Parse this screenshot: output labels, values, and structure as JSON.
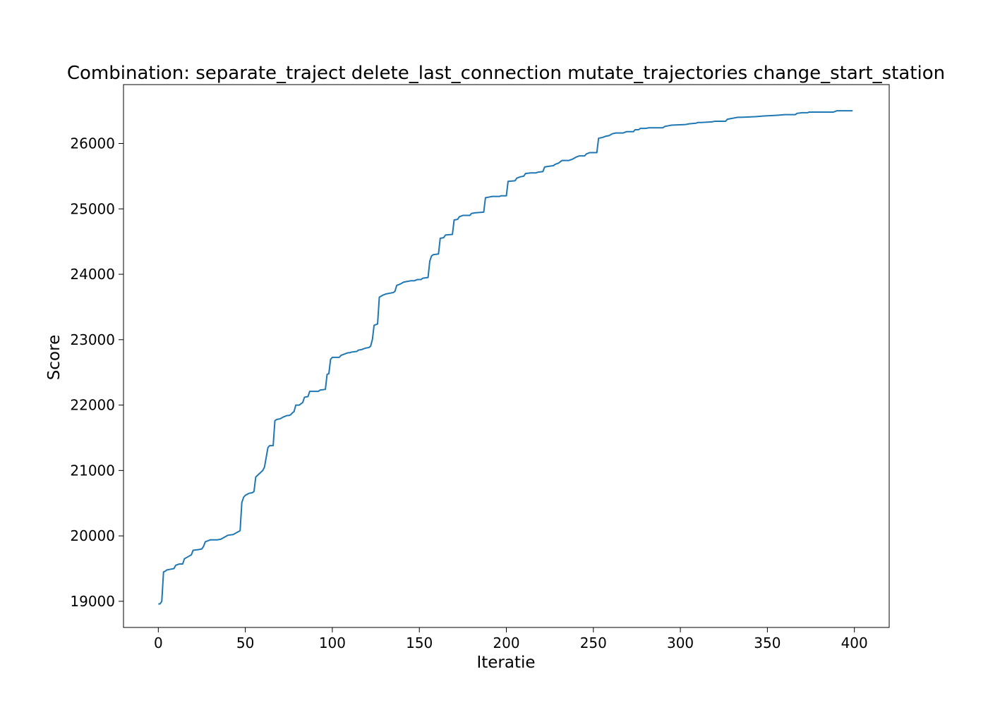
{
  "chart_data": {
    "type": "line",
    "title": "Combination: separate_traject delete_last_connection mutate_trajectories change_start_station",
    "xlabel": "Iteratie",
    "ylabel": "Score",
    "xlim": [
      -20,
      420
    ],
    "ylim": [
      18600,
      26900
    ],
    "xticks": [
      0,
      50,
      100,
      150,
      200,
      250,
      300,
      350,
      400
    ],
    "yticks": [
      19000,
      20000,
      21000,
      22000,
      23000,
      24000,
      25000,
      26000
    ],
    "grid": false,
    "legend": "none",
    "series": [
      {
        "color": "#1f77b4",
        "points": [
          [
            0,
            18960
          ],
          [
            1,
            18960
          ],
          [
            2,
            19000
          ],
          [
            3,
            19450
          ],
          [
            4,
            19460
          ],
          [
            5,
            19480
          ],
          [
            7,
            19490
          ],
          [
            9,
            19500
          ],
          [
            10,
            19550
          ],
          [
            12,
            19570
          ],
          [
            14,
            19570
          ],
          [
            15,
            19650
          ],
          [
            17,
            19680
          ],
          [
            19,
            19710
          ],
          [
            20,
            19780
          ],
          [
            23,
            19790
          ],
          [
            25,
            19800
          ],
          [
            26,
            19840
          ],
          [
            27,
            19910
          ],
          [
            28,
            19920
          ],
          [
            30,
            19940
          ],
          [
            34,
            19940
          ],
          [
            36,
            19950
          ],
          [
            38,
            19980
          ],
          [
            40,
            20010
          ],
          [
            43,
            20020
          ],
          [
            45,
            20050
          ],
          [
            47,
            20080
          ],
          [
            48,
            20510
          ],
          [
            49,
            20590
          ],
          [
            50,
            20620
          ],
          [
            52,
            20650
          ],
          [
            54,
            20660
          ],
          [
            55,
            20680
          ],
          [
            56,
            20900
          ],
          [
            58,
            20950
          ],
          [
            60,
            21000
          ],
          [
            61,
            21050
          ],
          [
            62,
            21200
          ],
          [
            63,
            21350
          ],
          [
            64,
            21380
          ],
          [
            66,
            21380
          ],
          [
            67,
            21760
          ],
          [
            68,
            21780
          ],
          [
            70,
            21790
          ],
          [
            72,
            21820
          ],
          [
            74,
            21840
          ],
          [
            75,
            21840
          ],
          [
            76,
            21850
          ],
          [
            77,
            21880
          ],
          [
            78,
            21900
          ],
          [
            79,
            22000
          ],
          [
            81,
            22000
          ],
          [
            83,
            22040
          ],
          [
            84,
            22120
          ],
          [
            86,
            22130
          ],
          [
            87,
            22210
          ],
          [
            90,
            22210
          ],
          [
            92,
            22210
          ],
          [
            93,
            22230
          ],
          [
            96,
            22240
          ],
          [
            97,
            22470
          ],
          [
            98,
            22480
          ],
          [
            99,
            22700
          ],
          [
            100,
            22730
          ],
          [
            104,
            22730
          ],
          [
            105,
            22760
          ],
          [
            107,
            22780
          ],
          [
            109,
            22800
          ],
          [
            110,
            22800
          ],
          [
            111,
            22810
          ],
          [
            114,
            22820
          ],
          [
            115,
            22840
          ],
          [
            117,
            22850
          ],
          [
            119,
            22870
          ],
          [
            121,
            22880
          ],
          [
            122,
            22900
          ],
          [
            123,
            23000
          ],
          [
            124,
            23220
          ],
          [
            126,
            23240
          ],
          [
            127,
            23650
          ],
          [
            129,
            23680
          ],
          [
            131,
            23700
          ],
          [
            133,
            23710
          ],
          [
            135,
            23720
          ],
          [
            136,
            23740
          ],
          [
            137,
            23830
          ],
          [
            139,
            23850
          ],
          [
            141,
            23880
          ],
          [
            143,
            23890
          ],
          [
            145,
            23900
          ],
          [
            147,
            23900
          ],
          [
            149,
            23920
          ],
          [
            151,
            23920
          ],
          [
            152,
            23940
          ],
          [
            155,
            23950
          ],
          [
            156,
            24200
          ],
          [
            157,
            24280
          ],
          [
            158,
            24300
          ],
          [
            161,
            24310
          ],
          [
            162,
            24550
          ],
          [
            164,
            24560
          ],
          [
            165,
            24600
          ],
          [
            169,
            24610
          ],
          [
            170,
            24830
          ],
          [
            172,
            24840
          ],
          [
            173,
            24880
          ],
          [
            175,
            24900
          ],
          [
            179,
            24900
          ],
          [
            180,
            24930
          ],
          [
            182,
            24940
          ],
          [
            187,
            24950
          ],
          [
            188,
            25170
          ],
          [
            190,
            25180
          ],
          [
            192,
            25190
          ],
          [
            196,
            25190
          ],
          [
            197,
            25200
          ],
          [
            200,
            25200
          ],
          [
            201,
            25420
          ],
          [
            205,
            25430
          ],
          [
            206,
            25470
          ],
          [
            208,
            25490
          ],
          [
            210,
            25500
          ],
          [
            211,
            25540
          ],
          [
            214,
            25550
          ],
          [
            217,
            25550
          ],
          [
            218,
            25560
          ],
          [
            221,
            25570
          ],
          [
            222,
            25640
          ],
          [
            224,
            25650
          ],
          [
            227,
            25660
          ],
          [
            228,
            25680
          ],
          [
            230,
            25700
          ],
          [
            232,
            25740
          ],
          [
            236,
            25740
          ],
          [
            238,
            25760
          ],
          [
            240,
            25790
          ],
          [
            242,
            25810
          ],
          [
            245,
            25810
          ],
          [
            246,
            25840
          ],
          [
            248,
            25860
          ],
          [
            252,
            25860
          ],
          [
            253,
            26080
          ],
          [
            255,
            26090
          ],
          [
            257,
            26110
          ],
          [
            259,
            26120
          ],
          [
            261,
            26150
          ],
          [
            263,
            26160
          ],
          [
            267,
            26160
          ],
          [
            269,
            26180
          ],
          [
            273,
            26180
          ],
          [
            274,
            26210
          ],
          [
            276,
            26210
          ],
          [
            277,
            26230
          ],
          [
            280,
            26230
          ],
          [
            282,
            26240
          ],
          [
            290,
            26240
          ],
          [
            291,
            26260
          ],
          [
            293,
            26270
          ],
          [
            295,
            26280
          ],
          [
            303,
            26290
          ],
          [
            305,
            26300
          ],
          [
            309,
            26310
          ],
          [
            310,
            26320
          ],
          [
            312,
            26320
          ],
          [
            318,
            26330
          ],
          [
            320,
            26340
          ],
          [
            326,
            26340
          ],
          [
            327,
            26370
          ],
          [
            329,
            26380
          ],
          [
            331,
            26390
          ],
          [
            333,
            26400
          ],
          [
            335,
            26400
          ],
          [
            343,
            26410
          ],
          [
            348,
            26420
          ],
          [
            355,
            26430
          ],
          [
            360,
            26440
          ],
          [
            366,
            26440
          ],
          [
            367,
            26460
          ],
          [
            370,
            26470
          ],
          [
            373,
            26470
          ],
          [
            374,
            26480
          ],
          [
            388,
            26480
          ],
          [
            390,
            26500
          ],
          [
            392,
            26500
          ],
          [
            394,
            26500
          ],
          [
            399,
            26500
          ]
        ]
      }
    ]
  }
}
